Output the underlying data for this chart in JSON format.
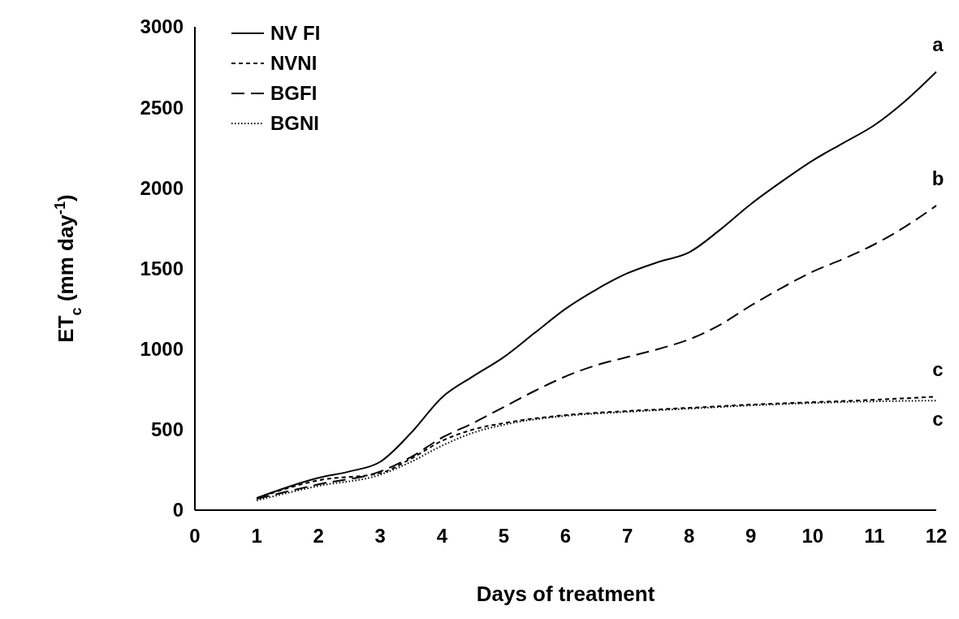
{
  "chart_data": {
    "type": "line",
    "xlabel": "Days of treatment",
    "ylabel": "ET$_{c}$ (mm day$^{-1}$)",
    "xlim": [
      0,
      12
    ],
    "xticks": [
      0,
      1,
      2,
      3,
      4,
      5,
      6,
      7,
      8,
      9,
      10,
      11,
      12
    ],
    "ylim": [
      0,
      3000
    ],
    "yticks": [
      0,
      500,
      1000,
      1500,
      2000,
      2500,
      3000
    ],
    "grid": false,
    "legend": "top left",
    "marker": "none",
    "series": [
      {
        "name": "NV FI",
        "color": "#000000",
        "line_style": "solid",
        "x": [
          1,
          2,
          2.5,
          3,
          3.5,
          4,
          4.5,
          5,
          5.5,
          6,
          6.5,
          7,
          7.5,
          8,
          8.5,
          9,
          9.5,
          10,
          10.5,
          11,
          11.5,
          12
        ],
        "values": [
          75,
          200,
          240,
          300,
          480,
          700,
          830,
          950,
          1100,
          1250,
          1370,
          1470,
          1540,
          1600,
          1740,
          1900,
          2040,
          2170,
          2280,
          2390,
          2540,
          2720
        ]
      },
      {
        "name": "NVNI",
        "color": "#000000",
        "line_style": "dashed",
        "x": [
          1,
          2,
          3,
          3.5,
          4,
          4.5,
          5,
          6,
          7,
          8,
          9,
          10,
          11,
          12
        ],
        "values": [
          75,
          185,
          230,
          320,
          430,
          500,
          540,
          590,
          615,
          635,
          655,
          670,
          685,
          705
        ]
      },
      {
        "name": "BGFI",
        "color": "#000000",
        "line_style": "dashed",
        "x": [
          1,
          2,
          3,
          3.5,
          4,
          4.5,
          5,
          5.5,
          6,
          6.5,
          7,
          7.5,
          8,
          8.5,
          9,
          9.5,
          10,
          10.5,
          11,
          11.5,
          12
        ],
        "values": [
          70,
          160,
          240,
          330,
          450,
          540,
          640,
          740,
          830,
          900,
          950,
          1000,
          1060,
          1150,
          1270,
          1380,
          1480,
          1560,
          1650,
          1760,
          1890
        ]
      },
      {
        "name": "BGNI",
        "color": "#000000",
        "line_style": "dotted",
        "x": [
          1,
          2,
          3,
          3.5,
          4,
          4.5,
          5,
          6,
          7,
          8,
          9,
          10,
          11,
          12
        ],
        "values": [
          60,
          150,
          220,
          300,
          400,
          480,
          530,
          585,
          610,
          630,
          650,
          665,
          675,
          680
        ]
      }
    ],
    "annotations": [
      "a",
      "b",
      "c",
      "c"
    ]
  }
}
